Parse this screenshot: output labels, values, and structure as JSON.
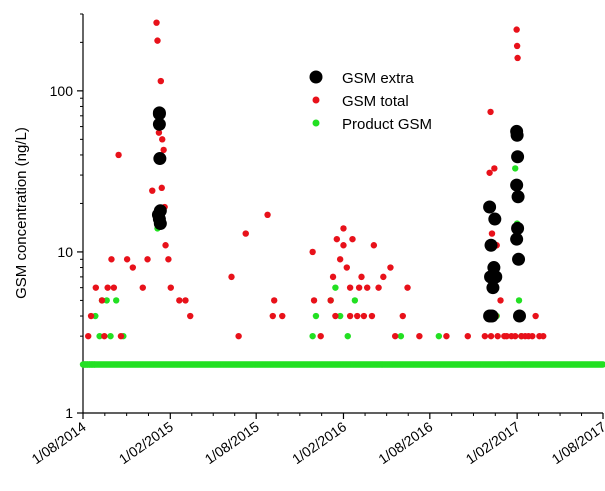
{
  "chart_data": {
    "type": "scatter",
    "title": "",
    "xlabel": "",
    "ylabel": "GSM concentration (ng/L)",
    "y_scale": "log",
    "ylim": [
      1,
      300
    ],
    "xlim": [
      "2014-08-01",
      "2017-08-01"
    ],
    "y_ticks": [
      1,
      10,
      100
    ],
    "y_tick_labels": [
      "1",
      "10",
      "100"
    ],
    "x_ticks": [
      "2014-08-01",
      "2015-02-01",
      "2015-08-01",
      "2016-02-01",
      "2016-08-01",
      "2017-02-01",
      "2017-08-01"
    ],
    "x_tick_labels": [
      "1/08/2014",
      "1/02/2015",
      "1/08/2015",
      "1/02/2016",
      "1/08/2016",
      "1/02/2017",
      "1/08/2017"
    ],
    "grid": false,
    "legend_position": "top-right",
    "series": [
      {
        "name": "GSM extra",
        "color": "#000000",
        "marker": "large-circle",
        "points": [
          [
            "2015-01-09",
            73
          ],
          [
            "2015-01-09",
            72
          ],
          [
            "2015-01-09",
            62
          ],
          [
            "2015-01-10",
            38
          ],
          [
            "2015-01-07",
            17
          ],
          [
            "2015-01-09",
            16
          ],
          [
            "2015-01-11",
            18
          ],
          [
            "2015-01-11",
            15
          ],
          [
            "2016-12-05",
            19
          ],
          [
            "2016-12-05",
            4
          ],
          [
            "2016-12-10",
            4
          ],
          [
            "2016-12-07",
            7
          ],
          [
            "2016-12-08",
            11
          ],
          [
            "2016-12-12",
            7
          ],
          [
            "2016-12-14",
            8
          ],
          [
            "2016-12-16",
            16
          ],
          [
            "2016-12-12",
            6
          ],
          [
            "2016-12-18",
            7
          ],
          [
            "2017-01-31",
            56
          ],
          [
            "2017-02-01",
            53
          ],
          [
            "2017-02-02",
            39
          ],
          [
            "2017-01-31",
            26
          ],
          [
            "2017-02-03",
            22
          ],
          [
            "2017-02-02",
            14
          ],
          [
            "2017-01-31",
            12
          ],
          [
            "2017-02-04",
            9
          ],
          [
            "2017-02-06",
            4
          ]
        ]
      },
      {
        "name": "GSM total",
        "color": "#e8111a",
        "marker": "dot",
        "points": [
          [
            "2014-08-12",
            3
          ],
          [
            "2014-08-18",
            4
          ],
          [
            "2014-08-28",
            6
          ],
          [
            "2014-09-10",
            5
          ],
          [
            "2014-09-15",
            3
          ],
          [
            "2014-09-22",
            6
          ],
          [
            "2014-09-30",
            9
          ],
          [
            "2014-10-05",
            6
          ],
          [
            "2014-10-15",
            40
          ],
          [
            "2014-10-20",
            3
          ],
          [
            "2014-11-02",
            9
          ],
          [
            "2014-11-14",
            8
          ],
          [
            "2014-12-05",
            6
          ],
          [
            "2014-12-15",
            9
          ],
          [
            "2014-12-25",
            24
          ],
          [
            "2015-01-03",
            265
          ],
          [
            "2015-01-05",
            205
          ],
          [
            "2015-01-12",
            115
          ],
          [
            "2015-01-08",
            55
          ],
          [
            "2015-01-15",
            50
          ],
          [
            "2015-01-18",
            43
          ],
          [
            "2015-01-14",
            25
          ],
          [
            "2015-01-20",
            19
          ],
          [
            "2015-01-22",
            11
          ],
          [
            "2015-01-28",
            9
          ],
          [
            "2015-02-02",
            6
          ],
          [
            "2015-02-20",
            5
          ],
          [
            "2015-03-05",
            5
          ],
          [
            "2015-03-15",
            4
          ],
          [
            "2015-06-10",
            7
          ],
          [
            "2015-06-25",
            3
          ],
          [
            "2015-07-10",
            13
          ],
          [
            "2015-08-25",
            17
          ],
          [
            "2015-09-05",
            4
          ],
          [
            "2015-09-08",
            5
          ],
          [
            "2015-09-25",
            4
          ],
          [
            "2015-11-28",
            10
          ],
          [
            "2015-12-01",
            5
          ],
          [
            "2015-12-15",
            3
          ],
          [
            "2016-01-05",
            5
          ],
          [
            "2016-01-10",
            7
          ],
          [
            "2016-01-15",
            4
          ],
          [
            "2016-01-18",
            12
          ],
          [
            "2016-01-25",
            9
          ],
          [
            "2016-02-01",
            14
          ],
          [
            "2016-02-01",
            11
          ],
          [
            "2016-02-08",
            8
          ],
          [
            "2016-02-15",
            6
          ],
          [
            "2016-02-15",
            4
          ],
          [
            "2016-02-20",
            12
          ],
          [
            "2016-03-01",
            4
          ],
          [
            "2016-03-05",
            6
          ],
          [
            "2016-03-10",
            7
          ],
          [
            "2016-03-15",
            4
          ],
          [
            "2016-03-22",
            6
          ],
          [
            "2016-04-01",
            4
          ],
          [
            "2016-04-05",
            11
          ],
          [
            "2016-04-15",
            6
          ],
          [
            "2016-04-25",
            7
          ],
          [
            "2016-05-10",
            8
          ],
          [
            "2016-05-20",
            3
          ],
          [
            "2016-06-05",
            4
          ],
          [
            "2016-06-15",
            6
          ],
          [
            "2016-07-10",
            3
          ],
          [
            "2016-09-05",
            3
          ],
          [
            "2016-10-20",
            3
          ],
          [
            "2016-11-25",
            3
          ],
          [
            "2016-12-05",
            31
          ],
          [
            "2016-12-07",
            74
          ],
          [
            "2016-12-08",
            3
          ],
          [
            "2016-12-10",
            13
          ],
          [
            "2016-12-15",
            33
          ],
          [
            "2016-12-18",
            4
          ],
          [
            "2016-12-20",
            11
          ],
          [
            "2016-12-22",
            3
          ],
          [
            "2016-12-28",
            5
          ],
          [
            "2017-01-05",
            3
          ],
          [
            "2017-01-10",
            3
          ],
          [
            "2017-01-20",
            3
          ],
          [
            "2017-01-28",
            3
          ],
          [
            "2017-01-31",
            240
          ],
          [
            "2017-02-01",
            190
          ],
          [
            "2017-02-02",
            160
          ],
          [
            "2017-01-30",
            58
          ],
          [
            "2017-02-03",
            27
          ],
          [
            "2017-02-04",
            9
          ],
          [
            "2017-02-05",
            4
          ],
          [
            "2017-02-10",
            3
          ],
          [
            "2017-02-18",
            3
          ],
          [
            "2017-02-25",
            3
          ],
          [
            "2017-03-05",
            3
          ],
          [
            "2017-03-12",
            4
          ],
          [
            "2017-03-20",
            3
          ],
          [
            "2017-03-28",
            3
          ]
        ]
      },
      {
        "name": "Product GSM",
        "color": "#22e022",
        "marker": "dot",
        "points": [
          [
            "2014-08-05",
            2
          ],
          [
            "2014-08-10",
            2
          ],
          [
            "2014-08-15",
            2
          ],
          [
            "2014-08-20",
            2
          ],
          [
            "2014-08-25",
            2
          ],
          [
            "2014-08-27",
            4
          ],
          [
            "2014-09-05",
            3
          ],
          [
            "2014-09-10",
            5
          ],
          [
            "2014-09-20",
            5
          ],
          [
            "2014-09-28",
            3
          ],
          [
            "2014-10-10",
            5
          ],
          [
            "2014-10-25",
            3
          ],
          [
            "2015-01-05",
            14
          ],
          [
            "2015-01-08",
            18
          ],
          [
            "2015-11-28",
            3
          ],
          [
            "2015-12-05",
            4
          ],
          [
            "2016-01-05",
            5
          ],
          [
            "2016-01-15",
            6
          ],
          [
            "2016-01-25",
            4
          ],
          [
            "2016-02-10",
            3
          ],
          [
            "2016-02-25",
            5
          ],
          [
            "2016-06-01",
            3
          ],
          [
            "2016-08-20",
            3
          ],
          [
            "2016-12-10",
            4
          ],
          [
            "2016-12-20",
            4
          ],
          [
            "2017-01-28",
            33
          ],
          [
            "2017-01-31",
            22
          ],
          [
            "2017-02-01",
            15
          ],
          [
            "2017-02-03",
            9
          ],
          [
            "2017-02-05",
            5
          ],
          [
            "2017-02-10",
            3
          ]
        ],
        "baseline": {
          "value": 2,
          "from": "2014-08-01",
          "to": "2017-08-01",
          "step_days": 2
        }
      }
    ]
  }
}
